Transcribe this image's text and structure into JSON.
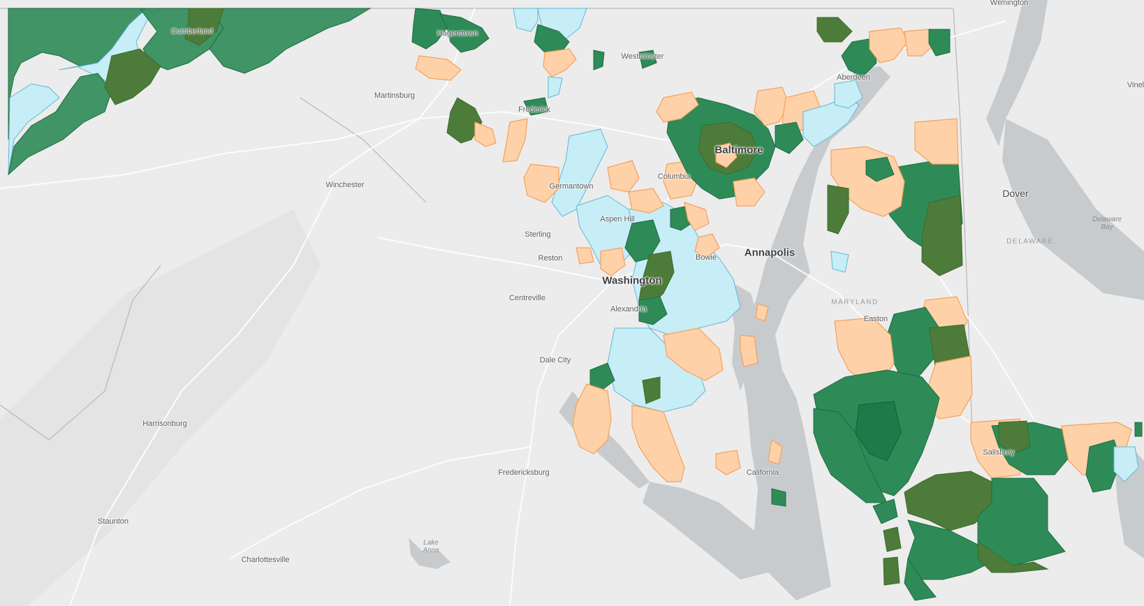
{
  "map": {
    "colors": {
      "land": "#ececec",
      "water": "#c6c9cb",
      "roads": "#ffffff",
      "green_fill": "#2e8b57",
      "olive_fill": "#4d7c3a",
      "orange_fill": "#ffd1a8",
      "orange_stroke": "#f5a05a",
      "blue_fill": "#c7edf7",
      "blue_stroke": "#5fb8d6"
    },
    "labels": {
      "wilmington": "Wilmington",
      "cumberland": "Cumberland",
      "hagerstown": "Hagerstown",
      "westminster": "Westminster",
      "martinsburg": "Martinsburg",
      "frederick": "Frederick",
      "aberdeen": "Aberdeen",
      "baltimore": "Baltimore",
      "columbia": "Columbia",
      "germantown": "Germantown",
      "winchester": "Winchester",
      "aspen_hill": "Aspen Hill",
      "sterling": "Sterling",
      "reston": "Reston",
      "washington": "Washington",
      "bowie": "Bowie",
      "annapolis": "Annapolis",
      "centreville": "Centreville",
      "alexandria": "Alexandria",
      "dale_city": "Dale City",
      "harrisonburg": "Harrisonburg",
      "fredericksburg": "Fredericksburg",
      "staunton": "Staunton",
      "charlottesville": "Charlottesville",
      "california": "California",
      "salisbury": "Salisbury",
      "easton": "Easton",
      "dover": "Dover",
      "vineland": "Vinel",
      "delaware": "DELAWARE",
      "maryland": "MARYLAND",
      "delaware_bay_1": "Delaware",
      "delaware_bay_2": "Bay",
      "lake_anna_1": "Lake",
      "lake_anna_2": "Anna"
    }
  }
}
